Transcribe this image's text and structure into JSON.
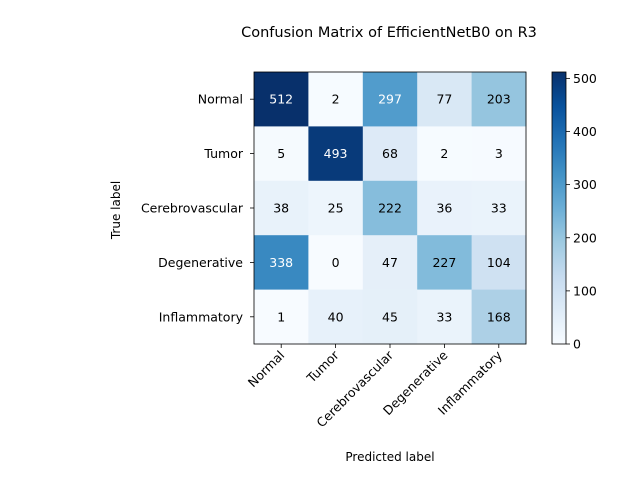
{
  "chart_data": {
    "type": "heatmap",
    "title": "Confusion Matrix of EfficientNetB0 on R3",
    "xlabel": "Predicted label",
    "ylabel": "True label",
    "labels": [
      "Normal",
      "Tumor",
      "Cerebrovascular",
      "Degenerative",
      "Inflammatory"
    ],
    "matrix": [
      [
        512,
        2,
        297,
        77,
        203
      ],
      [
        5,
        493,
        68,
        2,
        3
      ],
      [
        38,
        25,
        222,
        36,
        33
      ],
      [
        338,
        0,
        47,
        227,
        104
      ],
      [
        1,
        40,
        45,
        33,
        168
      ]
    ],
    "colorbar": {
      "min": 0,
      "max": 512,
      "ticks": [
        0,
        100,
        200,
        300,
        400,
        500
      ],
      "colormap": "Blues"
    }
  }
}
